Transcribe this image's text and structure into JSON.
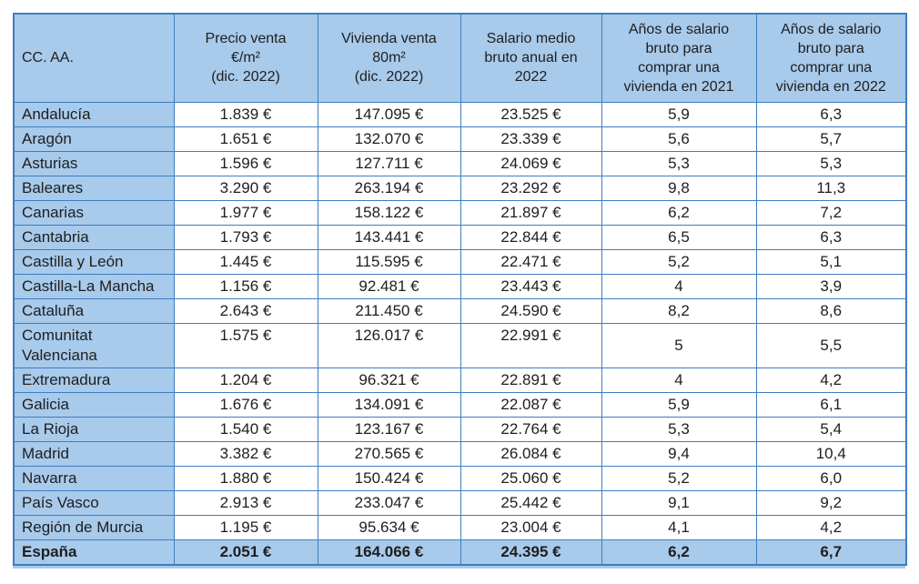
{
  "colors": {
    "cell_fill": "#a8caeb",
    "border": "#3e7dc0",
    "text": "#1e1e1e",
    "data_cell_background": "#ffffff"
  },
  "table": {
    "headers": [
      "CC. AA.",
      "Precio venta\n€/m²\n(dic. 2022)",
      "Vivienda venta\n80m²\n(dic. 2022)",
      "Salario medio\nbruto anual en\n2022",
      "Años de salario\nbruto para\ncomprar una\nvivienda en 2021",
      "Años de salario\nbruto para\ncomprar una\nvivienda en 2022"
    ],
    "rows": [
      {
        "name": "Andalucía",
        "values": [
          "1.839 €",
          "147.095 €",
          "23.525 €",
          "5,9",
          "6,3"
        ]
      },
      {
        "name": "Aragón",
        "values": [
          "1.651 €",
          "132.070 €",
          "23.339 €",
          "5,6",
          "5,7"
        ]
      },
      {
        "name": "Asturias",
        "values": [
          "1.596 €",
          "127.711 €",
          "24.069 €",
          "5,3",
          "5,3"
        ]
      },
      {
        "name": "Baleares",
        "values": [
          "3.290 €",
          "263.194 €",
          "23.292 €",
          "9,8",
          "11,3"
        ]
      },
      {
        "name": "Canarias",
        "values": [
          "1.977 €",
          "158.122 €",
          "21.897 €",
          "6,2",
          "7,2"
        ]
      },
      {
        "name": "Cantabria",
        "values": [
          "1.793 €",
          "143.441 €",
          "22.844 €",
          "6,5",
          "6,3"
        ]
      },
      {
        "name": "Castilla y León",
        "values": [
          "1.445 €",
          "115.595 €",
          "22.471 €",
          "5,2",
          "5,1"
        ]
      },
      {
        "name": "Castilla-La Mancha",
        "values": [
          "1.156 €",
          "92.481 €",
          "23.443 €",
          "4",
          "3,9"
        ]
      },
      {
        "name": "Cataluña",
        "values": [
          "2.643 €",
          "211.450 €",
          "24.590 €",
          "8,2",
          "8,6"
        ]
      },
      {
        "name": "Comunitat Valenciana",
        "values": [
          "1.575 €",
          "126.017 €",
          "22.991 €",
          "5",
          "5,5"
        ]
      },
      {
        "name": "Extremadura",
        "values": [
          "1.204 €",
          "96.321 €",
          "22.891 €",
          "4",
          "4,2"
        ]
      },
      {
        "name": "Galicia",
        "values": [
          "1.676 €",
          "134.091 €",
          "22.087 €",
          "5,9",
          "6,1"
        ]
      },
      {
        "name": "La Rioja",
        "values": [
          "1.540 €",
          "123.167 €",
          "22.764 €",
          "5,3",
          "5,4"
        ]
      },
      {
        "name": "Madrid",
        "values": [
          "3.382 €",
          "270.565 €",
          "26.084 €",
          "9,4",
          "10,4"
        ]
      },
      {
        "name": "Navarra",
        "values": [
          "1.880 €",
          "150.424 €",
          "25.060 €",
          "5,2",
          "6,0"
        ]
      },
      {
        "name": "País Vasco",
        "values": [
          "2.913 €",
          "233.047 €",
          "25.442 €",
          "9,1",
          "9,2"
        ]
      },
      {
        "name": "Región de Murcia",
        "values": [
          "1.195 €",
          "95.634 €",
          "23.004 €",
          "4,1",
          "4,2"
        ]
      }
    ],
    "footer": {
      "name": "España",
      "values": [
        "2.051 €",
        "164.066 €",
        "24.395 €",
        "6,2",
        "6,7"
      ]
    }
  },
  "chart_data": {
    "type": "table",
    "title": "",
    "columns": [
      "CC. AA.",
      "Precio venta €/m² (dic. 2022)",
      "Vivienda venta 80m² (dic. 2022)",
      "Salario medio bruto anual en 2022",
      "Años de salario bruto para comprar una vivienda en 2021",
      "Años de salario bruto para comprar una vivienda en 2022"
    ],
    "rows": [
      [
        "Andalucía",
        1839,
        147095,
        23525,
        5.9,
        6.3
      ],
      [
        "Aragón",
        1651,
        132070,
        23339,
        5.6,
        5.7
      ],
      [
        "Asturias",
        1596,
        127711,
        24069,
        5.3,
        5.3
      ],
      [
        "Baleares",
        3290,
        263194,
        23292,
        9.8,
        11.3
      ],
      [
        "Canarias",
        1977,
        158122,
        21897,
        6.2,
        7.2
      ],
      [
        "Cantabria",
        1793,
        143441,
        22844,
        6.5,
        6.3
      ],
      [
        "Castilla y León",
        1445,
        115595,
        22471,
        5.2,
        5.1
      ],
      [
        "Castilla-La Mancha",
        1156,
        92481,
        23443,
        4,
        3.9
      ],
      [
        "Cataluña",
        2643,
        211450,
        24590,
        8.2,
        8.6
      ],
      [
        "Comunitat Valenciana",
        1575,
        126017,
        22991,
        5,
        5.5
      ],
      [
        "Extremadura",
        1204,
        96321,
        22891,
        4,
        4.2
      ],
      [
        "Galicia",
        1676,
        134091,
        22087,
        5.9,
        6.1
      ],
      [
        "La Rioja",
        1540,
        123167,
        22764,
        5.3,
        5.4
      ],
      [
        "Madrid",
        3382,
        270565,
        26084,
        9.4,
        10.4
      ],
      [
        "Navarra",
        1880,
        150424,
        25060,
        5.2,
        6.0
      ],
      [
        "País Vasco",
        2913,
        233047,
        25442,
        9.1,
        9.2
      ],
      [
        "Región de Murcia",
        1195,
        95634,
        23004,
        4.1,
        4.2
      ],
      [
        "España",
        2051,
        164066,
        24395,
        6.2,
        6.7
      ]
    ]
  }
}
